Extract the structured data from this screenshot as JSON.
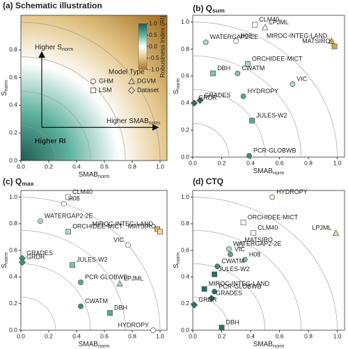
{
  "chart_data": [
    {
      "type": "heatmap",
      "title": "(a) Schematic illustration",
      "xlabel": {
        "main": "SMAB",
        "sub": "norm"
      },
      "ylabel": {
        "main": "S",
        "sub": "norm"
      },
      "xlim": [
        0,
        1.05
      ],
      "ylim": [
        0,
        1.05
      ],
      "xticks": [
        {
          "value": 0,
          "label": "0.0"
        },
        0.2,
        0.4,
        0.6,
        0.8,
        {
          "value": 1,
          "label": "1.0"
        }
      ],
      "yticks": [
        {
          "value": 0,
          "label": "0.0"
        },
        0.2,
        0.4,
        0.6,
        0.8
      ],
      "arcs": [
        0.25,
        0.5,
        0.75,
        1
      ],
      "annotations": {
        "up": {
          "main": "Higher S",
          "sub": "norm"
        },
        "right": {
          "main": "Higher SMAB",
          "sub": "norm"
        },
        "ri": "Higher RI"
      },
      "colorbar": {
        "label": "Robustness Index (RI)",
        "lim": [
          -1,
          1
        ],
        "colors": [
          "#1d5a52",
          "#5fb39e",
          "#ffffff",
          "#e2c486",
          "#a8772c"
        ],
        "ticks": [
          {
            "value": 1,
            "label": "1.0"
          },
          0.5,
          {
            "value": 0,
            "label": "0.0"
          },
          -0.5,
          {
            "value": -1,
            "label": "-1.0"
          }
        ]
      },
      "legend": {
        "title": "Model Type",
        "entries": [
          {
            "name": "GHM",
            "marker": "circle"
          },
          {
            "name": "LSM",
            "marker": "square"
          },
          {
            "name": "DGVM",
            "marker": "triangle"
          },
          {
            "name": "Dataset",
            "marker": "diamond"
          }
        ]
      }
    },
    {
      "type": "scatter",
      "title": {
        "main": "(b) Q",
        "sub": "sum"
      },
      "xlabel": {
        "main": "SMAB",
        "sub": "norm"
      },
      "ylabel": {
        "main": "S",
        "sub": "norm"
      },
      "xlim": [
        0,
        1.05
      ],
      "ylim": [
        0,
        1.05
      ],
      "xticks": [
        {
          "value": 0,
          "label": "0.0"
        },
        0.2,
        0.4,
        0.6,
        0.8,
        {
          "value": 1,
          "label": "1.0"
        }
      ],
      "yticks": [
        {
          "value": 0,
          "label": "0.0"
        },
        0.2,
        0.4,
        0.6,
        0.8,
        {
          "value": 1,
          "label": "1.0"
        }
      ],
      "arcs": [
        0.25,
        0.5,
        0.75,
        1
      ],
      "points": [
        {
          "label": "CLM40",
          "x": 0.43,
          "y": 0.98,
          "marker": "square",
          "color": "#ffffff"
        },
        {
          "label": "LPJML",
          "x": 0.5,
          "y": 0.96,
          "marker": "triangle",
          "color": "#f4f4f4"
        },
        {
          "label": "WATERGAP2-2E",
          "x": 0.09,
          "y": 0.85,
          "marker": "circle",
          "color": "#a9d9c9"
        },
        {
          "label": "H08",
          "x": 0.3,
          "y": 0.86,
          "marker": "circle",
          "color": "#ffffff"
        },
        {
          "label": "MIROC-INTEG-LAND",
          "x": 0.96,
          "y": 0.86,
          "marker": "triangle",
          "color": "#d9a441"
        },
        {
          "label": "MATSIRO",
          "x": 0.98,
          "y": 0.82,
          "marker": "square",
          "color": "#d9a441"
        },
        {
          "label": "ORCHIDEE-MICT",
          "x": 0.38,
          "y": 0.69,
          "marker": "square",
          "color": "#a9d9c9"
        },
        {
          "label": "DBH",
          "x": 0.14,
          "y": 0.62,
          "marker": "square",
          "color": "#7fc3ad"
        },
        {
          "label": "CWATM",
          "x": 0.31,
          "y": 0.62,
          "marker": "circle",
          "color": "#7fc3ad"
        },
        {
          "label": "VIC",
          "x": 0.69,
          "y": 0.54,
          "marker": "circle",
          "color": "#a9d9c9"
        },
        {
          "label": "HYDROPY",
          "x": 0.35,
          "y": 0.45,
          "marker": "circle",
          "color": "#5aa894"
        },
        {
          "label": "GRADES",
          "x": 0.05,
          "y": 0.42,
          "marker": "diamond",
          "color": "#2e6e62"
        },
        {
          "label": "GRDR",
          "x": 0.01,
          "y": 0.4,
          "marker": "diamond",
          "color": "#2e6e62"
        },
        {
          "label": "JULES-W2",
          "x": 0.41,
          "y": 0.27,
          "marker": "square",
          "color": "#5aa894"
        },
        {
          "label": "PCR-GLOBWB",
          "x": 0.39,
          "y": 0.01,
          "marker": "circle",
          "color": "#3f8c78"
        }
      ]
    },
    {
      "type": "scatter",
      "title": {
        "main": "(c) Q",
        "sub": "max"
      },
      "xlabel": {
        "main": "SMAB",
        "sub": "norm"
      },
      "ylabel": {
        "main": "S",
        "sub": "norm"
      },
      "xlim": [
        0,
        1.05
      ],
      "ylim": [
        0,
        1.05
      ],
      "xticks": [
        {
          "value": 0,
          "label": "0.0"
        },
        0.2,
        0.4,
        0.6,
        0.8,
        {
          "value": 1,
          "label": "1.0"
        }
      ],
      "yticks": [
        {
          "value": 0,
          "label": "0.0"
        },
        0.2,
        0.4,
        0.6,
        0.8,
        {
          "value": 1,
          "label": "1.0"
        }
      ],
      "arcs": [
        0.25,
        0.5,
        0.75,
        1
      ],
      "points": [
        {
          "label": "CLM40",
          "x": 0.34,
          "y": 1,
          "marker": "square",
          "color": "#ffffff"
        },
        {
          "label": "H08",
          "x": 0.31,
          "y": 0.95,
          "marker": "circle",
          "color": "#ffffff"
        },
        {
          "label": "WATERGAP2-2E",
          "x": 0.14,
          "y": 0.82,
          "marker": "circle",
          "color": "#a9d9c9"
        },
        {
          "label": "ORCHIDEE-MICT",
          "x": 0.34,
          "y": 0.74,
          "marker": "square",
          "color": "#a9d9c9"
        },
        {
          "label": "MIROC-INTEG-LAND",
          "x": 0.98,
          "y": 0.76,
          "marker": "square",
          "color": "#e0b35a"
        },
        {
          "label": "MATSIRO",
          "x": 1,
          "y": 0.74,
          "marker": "square",
          "color": "#f0d49a"
        },
        {
          "label": "VIC",
          "x": 0.77,
          "y": 0.64,
          "marker": "circle",
          "color": "#ffffff"
        },
        {
          "label": "GRADES",
          "x": 0.01,
          "y": 0.54,
          "marker": "diamond",
          "color": "#3f8c78"
        },
        {
          "label": "GRDR",
          "x": 0.01,
          "y": 0.51,
          "marker": "diamond",
          "color": "#3f8c78"
        },
        {
          "label": "JULES-W2",
          "x": 0.37,
          "y": 0.49,
          "marker": "square",
          "color": "#7fc3ad"
        },
        {
          "label": "PCR-GLOBWB",
          "x": 0.43,
          "y": 0.36,
          "marker": "circle",
          "color": "#5aa894"
        },
        {
          "label": "LPJML",
          "x": 0.71,
          "y": 0.35,
          "marker": "triangle",
          "color": "#a9d9c9"
        },
        {
          "label": "CWATM",
          "x": 0.43,
          "y": 0.18,
          "marker": "circle",
          "color": "#3f8c78"
        },
        {
          "label": "DBH",
          "x": 0.64,
          "y": 0.13,
          "marker": "square",
          "color": "#5aa894"
        },
        {
          "label": "HYDROPY",
          "x": 0.95,
          "y": 0,
          "marker": "circle",
          "color": "#ffffff"
        }
      ]
    },
    {
      "type": "scatter",
      "title": "(d) CTQ",
      "xlabel": {
        "main": "SMAB",
        "sub": "norm"
      },
      "ylabel": {
        "main": "S",
        "sub": "norm"
      },
      "xlim": [
        0,
        1.05
      ],
      "ylim": [
        0,
        1.05
      ],
      "xticks": [
        {
          "value": 0,
          "label": "0.0"
        },
        0.2,
        0.4,
        0.6,
        0.8,
        {
          "value": 1,
          "label": "1.0"
        }
      ],
      "yticks": [
        {
          "value": 0,
          "label": "0.0"
        },
        0.2,
        0.4,
        0.6,
        0.8,
        {
          "value": 1,
          "label": "1.0"
        }
      ],
      "arcs": [
        0.25,
        0.5,
        0.75,
        1
      ],
      "points": [
        {
          "label": "HYDROPY",
          "x": 0.55,
          "y": 1,
          "marker": "circle",
          "color": "#f5ebc8"
        },
        {
          "label": "ORCHIDEE-MICT",
          "x": 0.35,
          "y": 0.81,
          "marker": "square",
          "color": "#ffffff"
        },
        {
          "label": "LPJML",
          "x": 0.99,
          "y": 0.73,
          "marker": "triangle",
          "color": "#e9d49a"
        },
        {
          "label": "CLM40",
          "x": 0.42,
          "y": 0.73,
          "marker": "square",
          "color": "#ffffff"
        },
        {
          "label": "MATSIRO",
          "x": 0.33,
          "y": 0.64,
          "marker": "square",
          "color": "#d8efe7"
        },
        {
          "label": "WATERGAP2-2E",
          "x": 0.25,
          "y": 0.61,
          "marker": "circle",
          "color": "#a9d9c9"
        },
        {
          "label": "H08",
          "x": 0.36,
          "y": 0.53,
          "marker": "circle",
          "color": "#7fc3ad"
        },
        {
          "label": "VIC",
          "x": 0.26,
          "y": 0.57,
          "marker": "circle",
          "color": "#5aa894"
        },
        {
          "label": "CWATM",
          "x": 0.17,
          "y": 0.48,
          "marker": "circle",
          "color": "#3f8c78"
        },
        {
          "label": "JULES-W2",
          "x": 0.15,
          "y": 0.42,
          "marker": "square",
          "color": "#2e6e62"
        },
        {
          "label": "MIROC-INTEG-LAND",
          "x": 0.08,
          "y": 0.31,
          "marker": "square",
          "color": "#2e6e62"
        },
        {
          "label": "PCR-GLOBWB",
          "x": 0.15,
          "y": 0.29,
          "marker": "circle",
          "color": "#2e6e62"
        },
        {
          "label": "GRADES",
          "x": 0.13,
          "y": 0.24,
          "marker": "diamond",
          "color": "#2e6e62"
        },
        {
          "label": "GRDR",
          "x": 0.01,
          "y": 0.19,
          "marker": "diamond",
          "color": "#2e6e62"
        },
        {
          "label": "DBH",
          "x": 0.2,
          "y": 0.02,
          "marker": "square",
          "color": "#2e6e62"
        }
      ]
    }
  ]
}
